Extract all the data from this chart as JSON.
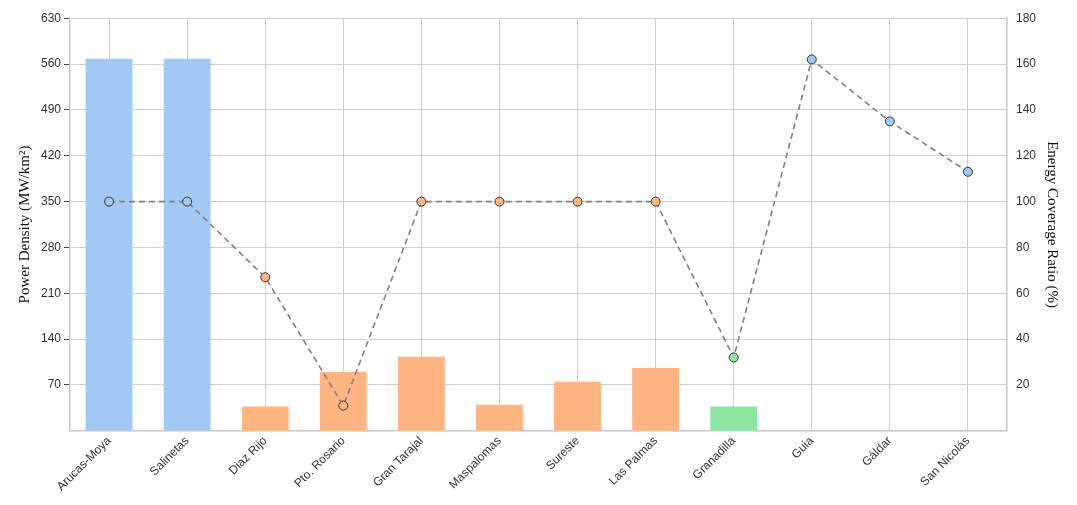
{
  "chart_data": {
    "type": "bar",
    "categories": [
      "Arucas-Moya",
      "Salinetas",
      "Diaz Rijo",
      "Pto. Rosario",
      "Gran Tarajal",
      "Maspalomas",
      "Sureste",
      "Las Palmas",
      "Granadilla",
      "Guia",
      "Gáldar",
      "San Nicolás"
    ],
    "series": [
      {
        "colors": [
          "#a1c9f4",
          "#a1c9f4",
          "#ffb482",
          "#ffb482",
          "#ffb482",
          "#ffb482",
          "#ffb482",
          "#ffb482",
          "#8de5a1",
          "#a1c9f4",
          "#a1c9f4",
          "#a1c9f4"
        ],
        "values": [
          568,
          568,
          37,
          90,
          113,
          40,
          75,
          96,
          37,
          null,
          null,
          null
        ]
      },
      {
        "type": "line",
        "axis": "y2",
        "color": "#808080",
        "colors": [
          "#a1c9f4",
          "#a1c9f4",
          "#ffb482",
          "#ffb482",
          "#ffb482",
          "#ffb482",
          "#ffb482",
          "#ffb482",
          "#8de5a1",
          "#a1c9f4",
          "#a1c9f4",
          "#a1c9f4"
        ],
        "values": [
          100,
          100,
          67,
          11,
          100,
          100,
          100,
          100,
          32,
          162,
          135,
          113
        ],
        "marker": "circle",
        "line_style": "dashed"
      }
    ],
    "ylabel": "Power Density (MW/km²)",
    "y2label": "Energy Coverage Ratio (%)",
    "ylim": [
      0,
      630
    ],
    "yticks": [
      70,
      140,
      210,
      280,
      350,
      420,
      490,
      560,
      630
    ],
    "y2lim": [
      0,
      180
    ],
    "y2ticks": [
      20,
      40,
      60,
      80,
      100,
      120,
      140,
      160,
      180
    ],
    "grid": true,
    "legend": false
  }
}
